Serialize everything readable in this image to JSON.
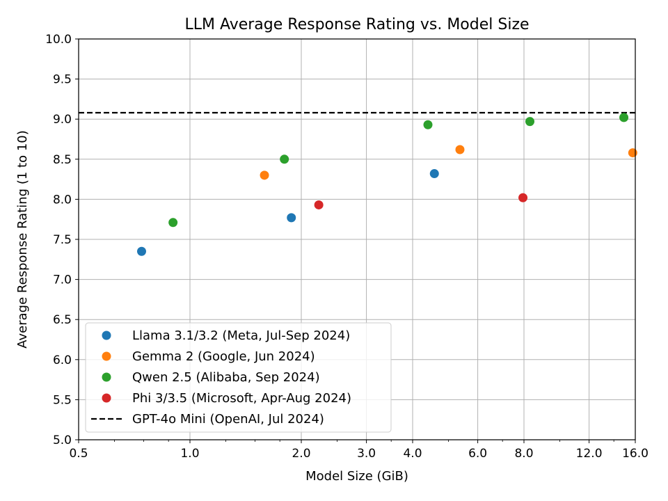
{
  "chart_data": {
    "type": "scatter",
    "title": "LLM Average Response Rating vs. Model Size",
    "xlabel": "Model Size (GiB)",
    "ylabel": "Average Response Rating (1 to 10)",
    "x_scale": "log2",
    "xlim": [
      0.5,
      16.0
    ],
    "ylim": [
      5.0,
      10.0
    ],
    "x_ticks": [
      0.5,
      1.0,
      2.0,
      3.0,
      4.0,
      6.0,
      8.0,
      12.0,
      16.0
    ],
    "x_tick_labels": [
      "0.5",
      "1.0",
      "2.0",
      "3.0",
      "4.0",
      "6.0",
      "8.0",
      "12.0",
      "16.0"
    ],
    "y_ticks": [
      5.0,
      5.5,
      6.0,
      6.5,
      7.0,
      7.5,
      8.0,
      8.5,
      9.0,
      9.5,
      10.0
    ],
    "y_tick_labels": [
      "5.0",
      "5.5",
      "6.0",
      "6.5",
      "7.0",
      "7.5",
      "8.0",
      "8.5",
      "9.0",
      "9.5",
      "10.0"
    ],
    "grid": true,
    "legend_position": "lower-left",
    "series": [
      {
        "name": "Llama 3.1/3.2 (Meta, Jul-Sep 2024)",
        "color": "#1f77b4",
        "points": [
          [
            0.74,
            7.35
          ],
          [
            1.88,
            7.77
          ],
          [
            4.58,
            8.32
          ]
        ]
      },
      {
        "name": "Gemma 2 (Google, Jun 2024)",
        "color": "#ff7f0e",
        "points": [
          [
            1.59,
            8.3
          ],
          [
            5.37,
            8.62
          ],
          [
            15.75,
            8.58
          ]
        ]
      },
      {
        "name": "Qwen 2.5 (Alibaba, Sep 2024)",
        "color": "#2ca02c",
        "points": [
          [
            0.9,
            7.71
          ],
          [
            1.8,
            8.5
          ],
          [
            4.4,
            8.93
          ],
          [
            8.3,
            8.97
          ],
          [
            14.9,
            9.02
          ]
        ]
      },
      {
        "name": "Phi 3/3.5 (Microsoft, Apr-Aug 2024)",
        "color": "#d62728",
        "points": [
          [
            2.23,
            7.93
          ],
          [
            7.95,
            8.02
          ]
        ]
      }
    ],
    "reference_lines": [
      {
        "name": "GPT-4o Mini (OpenAI, Jul 2024)",
        "y": 9.08,
        "color": "#000000",
        "style": "dashed"
      }
    ]
  }
}
